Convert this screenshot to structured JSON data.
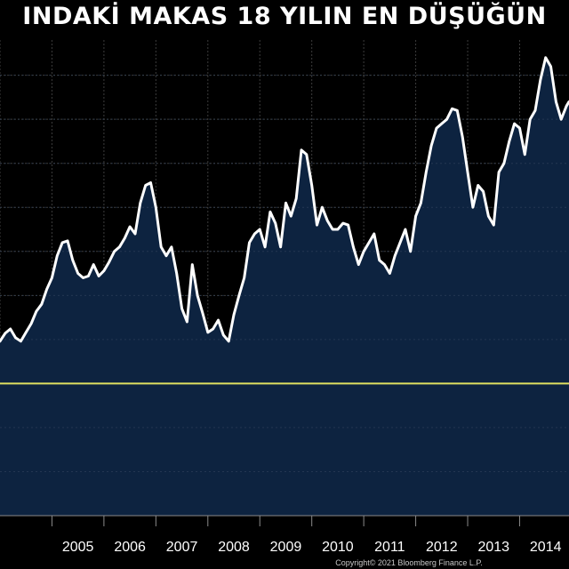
{
  "chart_data": {
    "type": "area",
    "title": "INDAKİ MAKAS 18 YILIN EN DÜŞÜĞÜN",
    "xlabel": "",
    "ylabel": "",
    "x_tick_labels": [
      "2005",
      "2006",
      "2007",
      "2008",
      "2009",
      "2010",
      "2011",
      "2012",
      "2013",
      "2014"
    ],
    "xlim": [
      2004.0,
      2014.95
    ],
    "ylim": [
      -3.0,
      2.4
    ],
    "grid": true,
    "series": [
      {
        "color": "#ffffff",
        "fill": "#0d2340",
        "x": [
          2004.0,
          2004.1,
          2004.2,
          2004.3,
          2004.4,
          2004.5,
          2004.6,
          2004.7,
          2004.8,
          2004.9,
          2005.0,
          2005.1,
          2005.2,
          2005.3,
          2005.4,
          2005.5,
          2005.6,
          2005.7,
          2005.8,
          2005.9,
          2006.0,
          2006.1,
          2006.2,
          2006.3,
          2006.4,
          2006.5,
          2006.6,
          2006.7,
          2006.8,
          2006.9,
          2007.0,
          2007.1,
          2007.2,
          2007.3,
          2007.4,
          2007.5,
          2007.6,
          2007.7,
          2007.8,
          2007.9,
          2008.0,
          2008.1,
          2008.2,
          2008.3,
          2008.4,
          2008.5,
          2008.6,
          2008.7,
          2008.8,
          2008.9,
          2009.0,
          2009.1,
          2009.2,
          2009.3,
          2009.4,
          2009.5,
          2009.6,
          2009.7,
          2009.8,
          2009.9,
          2010.0,
          2010.1,
          2010.2,
          2010.3,
          2010.4,
          2010.5,
          2010.6,
          2010.7,
          2010.8,
          2010.9,
          2011.0,
          2011.1,
          2011.2,
          2011.3,
          2011.4,
          2011.5,
          2011.6,
          2011.7,
          2011.8,
          2011.9,
          2012.0,
          2012.1,
          2012.2,
          2012.3,
          2012.4,
          2012.5,
          2012.6,
          2012.7,
          2012.8,
          2012.9,
          2013.0,
          2013.1,
          2013.2,
          2013.3,
          2013.4,
          2013.5,
          2013.6,
          2013.7,
          2013.8,
          2013.9,
          2014.0,
          2014.1,
          2014.2,
          2014.3,
          2014.4,
          2014.5,
          2014.6,
          2014.7,
          2014.8,
          2014.9,
          2014.95
        ],
        "values": [
          -1.02,
          -0.93,
          -0.88,
          -0.98,
          -1.02,
          -0.92,
          -0.82,
          -0.68,
          -0.6,
          -0.43,
          -0.3,
          -0.05,
          0.1,
          0.12,
          -0.1,
          -0.25,
          -0.3,
          -0.28,
          -0.15,
          -0.28,
          -0.22,
          -0.12,
          0.0,
          0.05,
          0.15,
          0.28,
          0.2,
          0.55,
          0.75,
          0.78,
          0.5,
          0.05,
          -0.05,
          0.05,
          -0.25,
          -0.65,
          -0.8,
          -0.15,
          -0.5,
          -0.7,
          -0.92,
          -0.88,
          -0.78,
          -0.95,
          -1.02,
          -0.72,
          -0.5,
          -0.3,
          0.1,
          0.2,
          0.25,
          0.05,
          0.45,
          0.32,
          0.05,
          0.55,
          0.4,
          0.6,
          1.15,
          1.1,
          0.75,
          0.3,
          0.5,
          0.35,
          0.25,
          0.25,
          0.32,
          0.3,
          0.05,
          -0.15,
          0.0,
          0.1,
          0.2,
          -0.1,
          -0.15,
          -0.25,
          -0.05,
          0.1,
          0.25,
          0.0,
          0.4,
          0.55,
          0.9,
          1.2,
          1.4,
          1.45,
          1.5,
          1.62,
          1.6,
          1.3,
          0.9,
          0.5,
          0.75,
          0.68,
          0.4,
          0.3,
          0.9,
          1.0,
          1.25,
          1.45,
          1.4,
          1.1,
          1.5,
          1.6,
          1.95,
          2.2,
          2.1,
          1.7,
          1.5,
          1.65,
          1.7
        ]
      },
      {
        "color": "#e0e060",
        "x": [
          2004.0,
          2014.95
        ],
        "values": [
          -1.5,
          -1.5
        ]
      }
    ]
  },
  "footer": {
    "copyright": "Copyright© 2021 Bloomberg Finance L.P."
  }
}
